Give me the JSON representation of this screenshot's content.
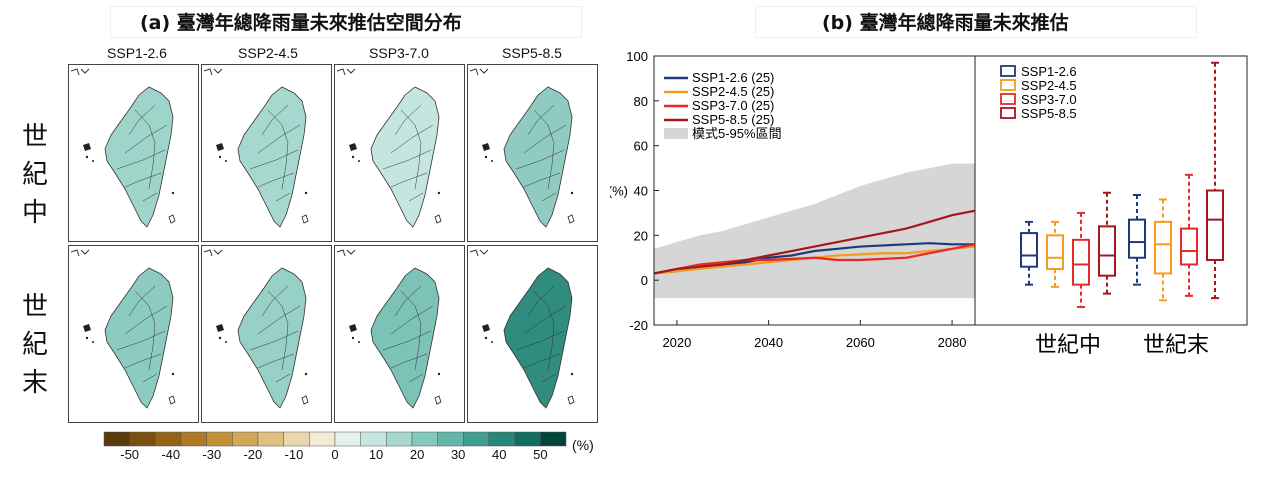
{
  "panel_a": {
    "title": "(a) 臺灣年總降雨量未來推估空間分布",
    "scenarios": [
      "SSP1-2.6",
      "SSP2-4.5",
      "SSP3-7.0",
      "SSP5-8.5"
    ],
    "periods": [
      "世紀中",
      "世紀末"
    ],
    "map_fill_colors": [
      [
        "#9fd4cb",
        "#a7d8cf",
        "#c5e6e0",
        "#8fcbc1"
      ],
      [
        "#8ccbc0",
        "#96d0c6",
        "#7cc2b6",
        "#2f8c7f"
      ]
    ],
    "colorbar": {
      "colors": [
        "#5a3a0a",
        "#7a4f0f",
        "#946416",
        "#ad7a25",
        "#c19038",
        "#d1a857",
        "#dfc183",
        "#ead7ae",
        "#f3ead6",
        "#e4f2ef",
        "#c7e6e0",
        "#a6d8cf",
        "#85c9bd",
        "#63b7aa",
        "#419f92",
        "#27877a",
        "#136e62",
        "#00453b"
      ],
      "tick_labels": [
        "-50",
        "-40",
        "-30",
        "-20",
        "-10",
        "0",
        "10",
        "20",
        "30",
        "40",
        "50"
      ],
      "unit": "(%)"
    }
  },
  "panel_b": {
    "title": "(b) 臺灣年總降雨量未來推估",
    "chart_data": [
      {
        "type": "line",
        "xlim": [
          2015,
          2085
        ],
        "ylim": [
          -20,
          100
        ],
        "x_ticks": [
          2020,
          2040,
          2060,
          2080
        ],
        "y_ticks": [
          -20,
          0,
          20,
          40,
          60,
          80,
          100
        ],
        "ylabel": "(%)",
        "legend": "top-left",
        "series": [
          {
            "name": "SSP1-2.6 (25)",
            "color": "#1f3a78",
            "x": [
              2015,
              2020,
              2025,
              2030,
              2035,
              2040,
              2045,
              2050,
              2055,
              2060,
              2065,
              2070,
              2075,
              2080,
              2085
            ],
            "y": [
              3,
              4,
              6,
              7,
              8,
              10,
              11,
              13,
              14,
              15,
              15.5,
              16,
              16.5,
              16,
              16
            ]
          },
          {
            "name": "SSP2-4.5 (25)",
            "color": "#f39c1e",
            "x": [
              2015,
              2020,
              2025,
              2030,
              2035,
              2040,
              2045,
              2050,
              2055,
              2060,
              2065,
              2070,
              2075,
              2080,
              2085
            ],
            "y": [
              3,
              4,
              5,
              6,
              7,
              8,
              9,
              10,
              11,
              11.5,
              12,
              12,
              13,
              14,
              15
            ]
          },
          {
            "name": "SSP3-7.0 (25)",
            "color": "#e8292c",
            "x": [
              2015,
              2020,
              2025,
              2030,
              2035,
              2040,
              2045,
              2050,
              2055,
              2060,
              2065,
              2070,
              2075,
              2080,
              2085
            ],
            "y": [
              3,
              5,
              7,
              8,
              9,
              9,
              9.5,
              10,
              9,
              9,
              9.5,
              10,
              12,
              14,
              16
            ]
          },
          {
            "name": "SSP5-8.5 (25)",
            "color": "#a3171d",
            "x": [
              2015,
              2020,
              2025,
              2030,
              2035,
              2040,
              2045,
              2050,
              2055,
              2060,
              2065,
              2070,
              2075,
              2080,
              2085
            ],
            "y": [
              3,
              5,
              6,
              7,
              9,
              11,
              13,
              15,
              17,
              19,
              21,
              23,
              26,
              29,
              31
            ]
          }
        ],
        "band": {
          "name": "模式5-95%區間",
          "color": "#d6d6d6",
          "x": [
            2015,
            2020,
            2025,
            2030,
            2035,
            2040,
            2045,
            2050,
            2055,
            2060,
            2065,
            2070,
            2075,
            2080,
            2085
          ],
          "upper": [
            14,
            17,
            20,
            22,
            25,
            28,
            31,
            34,
            38,
            42,
            45,
            48,
            50,
            52,
            52
          ],
          "lower": [
            -8,
            -8,
            -8,
            -8,
            -8,
            -8,
            -8,
            -8,
            -8,
            -8,
            -8,
            -8,
            -8,
            -8,
            -8
          ]
        }
      },
      {
        "type": "box",
        "ylim": [
          -20,
          100
        ],
        "categories": [
          "世紀中",
          "世紀末"
        ],
        "legend": "top-left",
        "series": [
          {
            "name": "SSP1-2.6",
            "color": "#1f3a78",
            "stats": [
              {
                "min": -2,
                "q1": 6,
                "median": 11,
                "q3": 21,
                "max": 26
              },
              {
                "min": -2,
                "q1": 10,
                "median": 17,
                "q3": 27,
                "max": 38
              }
            ]
          },
          {
            "name": "SSP2-4.5",
            "color": "#f39c1e",
            "stats": [
              {
                "min": -3,
                "q1": 5,
                "median": 10,
                "q3": 20,
                "max": 26
              },
              {
                "min": -9,
                "q1": 3,
                "median": 16,
                "q3": 26,
                "max": 36
              }
            ]
          },
          {
            "name": "SSP3-7.0",
            "color": "#e8292c",
            "stats": [
              {
                "min": -12,
                "q1": -2,
                "median": 7,
                "q3": 18,
                "max": 30
              },
              {
                "min": -7,
                "q1": 7,
                "median": 13,
                "q3": 23,
                "max": 47
              }
            ]
          },
          {
            "name": "SSP5-8.5",
            "color": "#a3171d",
            "stats": [
              {
                "min": -6,
                "q1": 2,
                "median": 11,
                "q3": 24,
                "max": 39
              },
              {
                "min": -8,
                "q1": 9,
                "median": 27,
                "q3": 40,
                "max": 97
              }
            ]
          }
        ]
      }
    ]
  }
}
